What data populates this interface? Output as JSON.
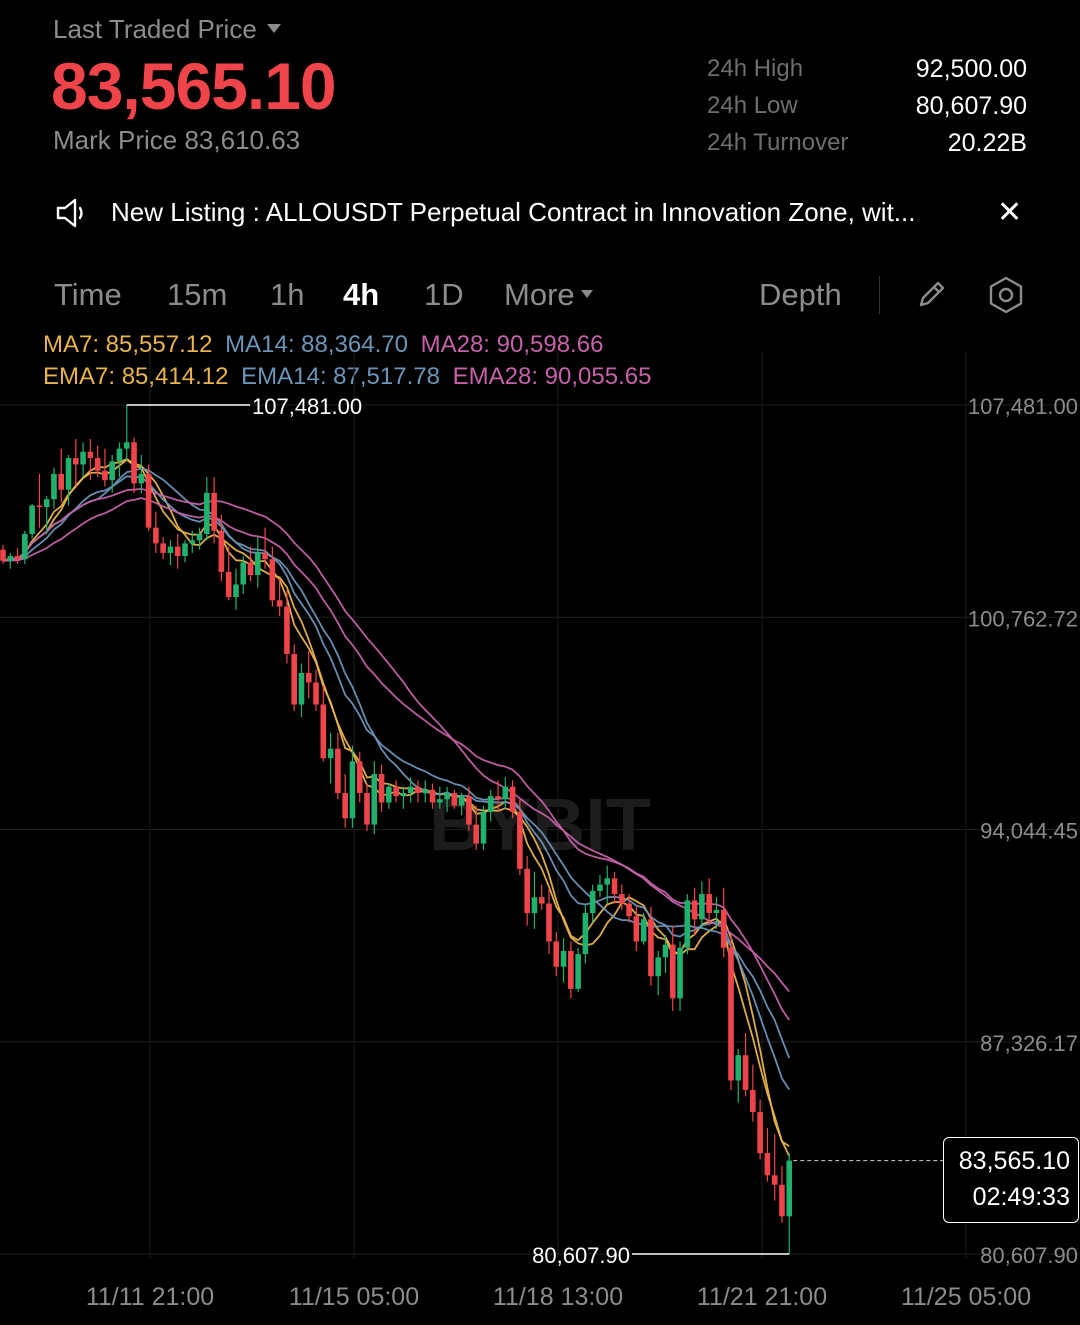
{
  "header": {
    "last_traded_label": "Last Traded Price",
    "last_price": "83,565.10",
    "mark_price": "Mark Price 83,610.63",
    "stats": [
      {
        "label": "24h High",
        "value": "92,500.00"
      },
      {
        "label": "24h Low",
        "value": "80,607.90"
      },
      {
        "label": "24h Turnover",
        "value": "20.22B"
      }
    ]
  },
  "announcement": {
    "text": "New Listing : ALLOUSDT Perpetual Contract in Innovation Zone, wit..."
  },
  "timeframes": {
    "tabs": [
      "Time",
      "15m",
      "1h",
      "4h",
      "1D"
    ],
    "active": "4h",
    "more_label": "More",
    "depth_label": "Depth"
  },
  "indicators": {
    "ma": [
      {
        "label": "MA7: 85,557.12",
        "color": "#e9b44c"
      },
      {
        "label": "MA14: 88,364.70",
        "color": "#6b95b8"
      },
      {
        "label": "MA28: 90,598.66",
        "color": "#c661a9"
      }
    ],
    "ema": [
      {
        "label": "EMA7: 85,414.12",
        "color": "#e9b44c"
      },
      {
        "label": "EMA14: 87,517.78",
        "color": "#6b95b8"
      },
      {
        "label": "EMA28: 90,055.65",
        "color": "#c661a9"
      }
    ]
  },
  "watermark": "BYBIT",
  "current_price_tag": {
    "price": "83,565.10",
    "countdown": "02:49:33"
  },
  "colors": {
    "up": "#20b26c",
    "down": "#ef454a",
    "muted": "#8c8c8c"
  },
  "chart_data": {
    "type": "candlestick",
    "y_ticks": [
      "107,481.00",
      "100,762.72",
      "94,044.45",
      "87,326.17",
      "80,607.90"
    ],
    "y_tick_values": [
      107481.0,
      100762.72,
      94044.45,
      87326.17,
      80607.9
    ],
    "x_ticks": [
      "11/11 21:00",
      "11/15 05:00",
      "11/18 13:00",
      "11/21 21:00",
      "11/25 05:00"
    ],
    "interval": "4h",
    "high_marker": {
      "label": "107,481.00",
      "value": 107481.0
    },
    "low_marker": {
      "label": "80,607.90",
      "value": 80607.9
    },
    "last_price": 83565.1,
    "candles": [
      [
        102900,
        103050,
        102450,
        102550
      ],
      [
        102550,
        102800,
        102300,
        102700
      ],
      [
        102700,
        102950,
        102450,
        102600
      ],
      [
        102600,
        103500,
        102450,
        103400
      ],
      [
        103400,
        104350,
        103250,
        104300
      ],
      [
        104300,
        105300,
        103600,
        104250
      ],
      [
        104250,
        104600,
        103400,
        104500
      ],
      [
        104500,
        105500,
        104200,
        105300
      ],
      [
        105300,
        106100,
        104400,
        104800
      ],
      [
        104800,
        105900,
        104300,
        105800
      ],
      [
        105800,
        106400,
        104900,
        105600
      ],
      [
        105600,
        106300,
        105200,
        106000
      ],
      [
        106000,
        106400,
        105100,
        105800
      ],
      [
        105800,
        106200,
        105200,
        105400
      ],
      [
        105400,
        106100,
        104900,
        105100
      ],
      [
        105100,
        105900,
        104700,
        105700
      ],
      [
        105700,
        106300,
        105200,
        106100
      ],
      [
        106100,
        107481,
        105700,
        106300
      ],
      [
        106300,
        106450,
        104700,
        105000
      ],
      [
        105000,
        105900,
        104700,
        105300
      ],
      [
        105300,
        105600,
        103500,
        103600
      ],
      [
        103600,
        104100,
        102800,
        103100
      ],
      [
        103100,
        103300,
        102600,
        102800
      ],
      [
        102800,
        103200,
        102400,
        103000
      ],
      [
        103000,
        103400,
        102300,
        102700
      ],
      [
        102700,
        103200,
        102500,
        103100
      ],
      [
        103100,
        103500,
        102800,
        103200
      ],
      [
        103200,
        103600,
        102900,
        103400
      ],
      [
        103400,
        105200,
        103200,
        104700
      ],
      [
        104700,
        105200,
        103100,
        103500
      ],
      [
        103500,
        104000,
        101900,
        102200
      ],
      [
        102200,
        103000,
        101300,
        101400
      ],
      [
        101400,
        102300,
        101000,
        101800
      ],
      [
        101800,
        102700,
        101500,
        102500
      ],
      [
        102500,
        103000,
        101900,
        102100
      ],
      [
        102100,
        103300,
        101700,
        102800
      ],
      [
        102800,
        103600,
        102300,
        102600
      ],
      [
        102600,
        103000,
        101100,
        101300
      ],
      [
        101300,
        102000,
        100800,
        101100
      ],
      [
        101100,
        101600,
        99300,
        99600
      ],
      [
        99600,
        99900,
        97800,
        98000
      ],
      [
        98000,
        99300,
        97600,
        99000
      ],
      [
        99000,
        99700,
        98200,
        98700
      ],
      [
        98700,
        99100,
        97800,
        98000
      ],
      [
        98000,
        98600,
        96200,
        96300
      ],
      [
        96300,
        97100,
        95500,
        96600
      ],
      [
        96600,
        97100,
        95000,
        95200
      ],
      [
        95200,
        95800,
        94100,
        94400
      ],
      [
        94400,
        96700,
        94100,
        96200
      ],
      [
        96200,
        96500,
        94900,
        95200
      ],
      [
        95200,
        95500,
        94000,
        94200
      ],
      [
        94200,
        96200,
        93900,
        95800
      ],
      [
        95800,
        96100,
        94600,
        94900
      ],
      [
        94900,
        95500,
        94700,
        95400
      ],
      [
        95400,
        95600,
        94900,
        95100
      ],
      [
        95100,
        95400,
        94700,
        95200
      ],
      [
        95200,
        95700,
        94900,
        95400
      ],
      [
        95400,
        95600,
        94900,
        95200
      ],
      [
        95200,
        95600,
        94900,
        95300
      ],
      [
        95300,
        95500,
        94700,
        94900
      ],
      [
        94900,
        95400,
        94700,
        95000
      ],
      [
        95000,
        95400,
        94600,
        95200
      ],
      [
        95200,
        95300,
        94700,
        94800
      ],
      [
        94800,
        95200,
        94500,
        95100
      ],
      [
        95100,
        95400,
        94000,
        94200
      ],
      [
        94200,
        94800,
        93400,
        93600
      ],
      [
        93600,
        94800,
        93400,
        94600
      ],
      [
        94600,
        95300,
        94300,
        95100
      ],
      [
        95100,
        95600,
        94600,
        95000
      ],
      [
        95000,
        95700,
        94700,
        95400
      ],
      [
        95400,
        95600,
        94400,
        94600
      ],
      [
        94600,
        95000,
        92600,
        92800
      ],
      [
        92800,
        93200,
        91000,
        91400
      ],
      [
        91400,
        92700,
        90900,
        91900
      ],
      [
        91900,
        92300,
        91500,
        91700
      ],
      [
        91700,
        92200,
        90100,
        90500
      ],
      [
        90500,
        90800,
        89400,
        89700
      ],
      [
        89700,
        90600,
        89200,
        90200
      ],
      [
        90200,
        90500,
        88700,
        89000
      ],
      [
        89000,
        90300,
        88900,
        90100
      ],
      [
        90100,
        91700,
        89800,
        91400
      ],
      [
        91400,
        92300,
        91100,
        92100
      ],
      [
        92100,
        92600,
        91900,
        92300
      ],
      [
        92300,
        92900,
        91700,
        92500
      ],
      [
        92500,
        92700,
        91700,
        92000
      ],
      [
        92000,
        92300,
        91500,
        91700
      ],
      [
        91700,
        92000,
        91100,
        91300
      ],
      [
        91300,
        91600,
        90200,
        90500
      ],
      [
        90500,
        91400,
        90400,
        91200
      ],
      [
        91200,
        91600,
        89100,
        89400
      ],
      [
        89400,
        90200,
        88800,
        90000
      ],
      [
        90000,
        90700,
        89500,
        90400
      ],
      [
        90400,
        91000,
        88300,
        88700
      ],
      [
        88700,
        90500,
        88300,
        90300
      ],
      [
        90300,
        92000,
        90100,
        91800
      ],
      [
        91800,
        92200,
        90700,
        91200
      ],
      [
        91200,
        92400,
        90900,
        92000
      ],
      [
        92000,
        92500,
        91000,
        91400
      ],
      [
        91400,
        91900,
        90900,
        91500
      ],
      [
        91500,
        92200,
        90000,
        90300
      ],
      [
        90300,
        90700,
        85800,
        86100
      ],
      [
        86100,
        87100,
        85400,
        86900
      ],
      [
        86900,
        87600,
        85600,
        85800
      ],
      [
        85800,
        86600,
        84800,
        85100
      ],
      [
        85100,
        85500,
        83600,
        83800
      ],
      [
        83800,
        84600,
        82900,
        83100
      ],
      [
        83100,
        84400,
        82300,
        82800
      ],
      [
        82800,
        83400,
        81600,
        81800
      ],
      [
        81800,
        83800,
        80607.9,
        83565.1
      ]
    ]
  }
}
